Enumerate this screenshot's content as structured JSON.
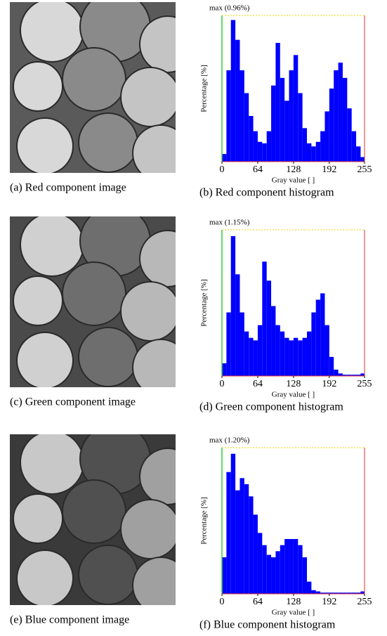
{
  "images": [
    {
      "caption": "(a) Red component   image"
    },
    {
      "caption": "(c) Green component   image"
    },
    {
      "caption": "(e) Blue component   image"
    }
  ],
  "chart_data": [
    {
      "type": "histogram",
      "caption": "(b) Red component histogram",
      "x_label": "Gray value [ ]",
      "y_label": "Percentage [%]",
      "color": "#0000ff",
      "bins": [
        0,
        8,
        16,
        24,
        32,
        40,
        48,
        56,
        64,
        72,
        80,
        88,
        96,
        104,
        112,
        120,
        128,
        136,
        144,
        152,
        160,
        168,
        176,
        184,
        192,
        200,
        208,
        216,
        224,
        232,
        240,
        248,
        255
      ],
      "values": [
        0.05,
        0.6,
        0.93,
        0.8,
        0.6,
        0.45,
        0.3,
        0.2,
        0.13,
        0.12,
        0.2,
        0.5,
        0.78,
        0.55,
        0.4,
        0.6,
        0.7,
        0.45,
        0.22,
        0.12,
        0.1,
        0.13,
        0.2,
        0.33,
        0.48,
        0.6,
        0.65,
        0.55,
        0.35,
        0.2,
        0.1,
        0.03
      ],
      "xlim": [
        0,
        255
      ],
      "xticks": [
        0,
        64,
        128,
        192,
        255
      ],
      "ylim": [
        0,
        0.96
      ],
      "yticks": [
        {
          "value": 0.96,
          "label": "max (0.96%)"
        }
      ]
    },
    {
      "type": "histogram",
      "caption": "(d) Green component histogram",
      "x_label": "Gray value [ ]",
      "y_label": "Percentage [%]",
      "color": "#0000ff",
      "bins": [
        0,
        8,
        16,
        24,
        32,
        40,
        48,
        56,
        64,
        72,
        80,
        88,
        96,
        104,
        112,
        120,
        128,
        136,
        144,
        152,
        160,
        168,
        176,
        184,
        192,
        200,
        208,
        216,
        224,
        232,
        240,
        248,
        255
      ],
      "values": [
        0.1,
        0.5,
        1.1,
        0.8,
        0.5,
        0.35,
        0.3,
        0.28,
        0.4,
        0.9,
        0.75,
        0.55,
        0.4,
        0.35,
        0.3,
        0.28,
        0.3,
        0.28,
        0.3,
        0.35,
        0.5,
        0.6,
        0.65,
        0.4,
        0.15,
        0.05,
        0.02,
        0.01,
        0.01,
        0.01,
        0.01,
        0.02
      ],
      "xlim": [
        0,
        255
      ],
      "xticks": [
        0,
        64,
        128,
        192,
        255
      ],
      "ylim": [
        0,
        1.15
      ],
      "yticks": [
        {
          "value": 1.15,
          "label": "max (1.15%)"
        }
      ]
    },
    {
      "type": "histogram",
      "caption": "(f) Blue component histogram",
      "x_label": "Gray value [ ]",
      "y_label": "Percentage [%]",
      "color": "#0000ff",
      "bins": [
        0,
        8,
        16,
        24,
        32,
        40,
        48,
        56,
        64,
        72,
        80,
        88,
        96,
        104,
        112,
        120,
        128,
        136,
        144,
        152,
        160,
        168,
        176,
        184,
        192,
        200,
        208,
        216,
        224,
        232,
        240,
        248,
        255
      ],
      "values": [
        0.3,
        1.0,
        1.15,
        0.85,
        0.95,
        0.9,
        0.8,
        0.65,
        0.5,
        0.4,
        0.32,
        0.3,
        0.35,
        0.4,
        0.45,
        0.45,
        0.45,
        0.4,
        0.3,
        0.1,
        0.03,
        0.02,
        0.01,
        0.01,
        0.01,
        0.01,
        0.01,
        0.01,
        0.01,
        0.01,
        0.01,
        0.02
      ],
      "xlim": [
        0,
        255
      ],
      "xticks": [
        0,
        64,
        128,
        192,
        255
      ],
      "ylim": [
        0,
        1.2
      ],
      "yticks": [
        {
          "value": 1.2,
          "label": "max (1.20%)"
        }
      ]
    }
  ]
}
